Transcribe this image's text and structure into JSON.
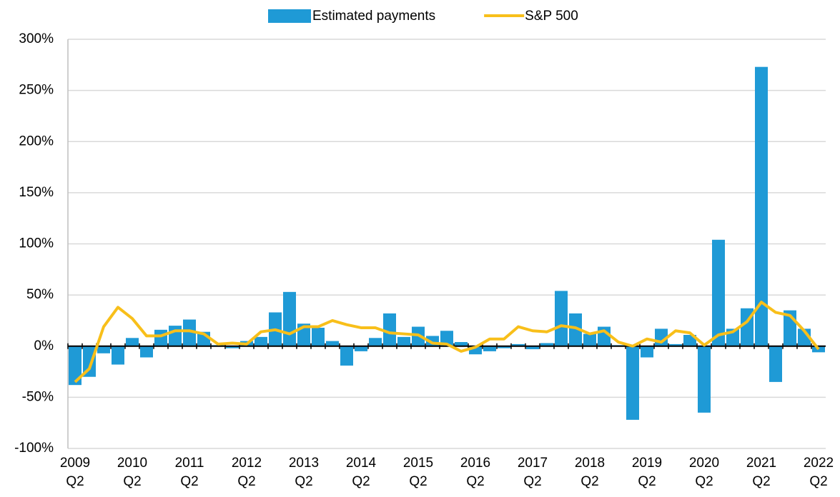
{
  "chart_data": {
    "type": "bar-line",
    "categories": [
      "2009\nQ2",
      null,
      null,
      null,
      "2010\nQ2",
      null,
      null,
      null,
      "2011\nQ2",
      null,
      null,
      null,
      "2012\nQ2",
      null,
      null,
      null,
      "2013\nQ2",
      null,
      null,
      null,
      "2014\nQ2",
      null,
      null,
      null,
      "2015\nQ2",
      null,
      null,
      null,
      "2016\nQ2",
      null,
      null,
      null,
      "2017\nQ2",
      null,
      null,
      null,
      "2018\nQ2",
      null,
      null,
      null,
      "2019\nQ2",
      null,
      null,
      null,
      "2020\nQ2",
      null,
      null,
      null,
      "2021\nQ2",
      null,
      null,
      null,
      "2022\nQ2"
    ],
    "series": [
      {
        "name": "Estimated payments",
        "type": "bar",
        "color": "#1f9ad6",
        "values": [
          -38,
          -30,
          -7,
          -18,
          8,
          -11,
          16,
          20,
          26,
          14,
          1,
          -2,
          5,
          9,
          33,
          53,
          22,
          18,
          5,
          -19,
          -5,
          8,
          32,
          9,
          19,
          10,
          15,
          4,
          -8,
          -5,
          -2,
          2,
          -3,
          3,
          54,
          32,
          12,
          19,
          1,
          -72,
          -11,
          17,
          2,
          11,
          -65,
          104,
          17,
          37,
          273,
          -35,
          35,
          17,
          -6
        ]
      },
      {
        "name": "S&P 500",
        "type": "line",
        "color": "#f8bf1a",
        "values": [
          -35,
          -22,
          19,
          38,
          27,
          10,
          10,
          15,
          15,
          12,
          2,
          3,
          2,
          14,
          16,
          12,
          19,
          19,
          25,
          21,
          18,
          18,
          13,
          12,
          11,
          3,
          2,
          -5,
          -1,
          7,
          7,
          19,
          15,
          14,
          20,
          18,
          12,
          15,
          4,
          0,
          7,
          4,
          15,
          13,
          1,
          11,
          14,
          24,
          43,
          33,
          30,
          15,
          -3
        ]
      }
    ],
    "ylim": [
      -100,
      300
    ],
    "yticks": [
      {
        "value": -100,
        "label": "-100%"
      },
      {
        "value": -50,
        "label": "-50%"
      },
      {
        "value": 0,
        "label": "0%"
      },
      {
        "value": 50,
        "label": "50%"
      },
      {
        "value": 100,
        "label": "100%"
      },
      {
        "value": 150,
        "label": "150%"
      },
      {
        "value": 200,
        "label": "200%"
      },
      {
        "value": 250,
        "label": "250%"
      },
      {
        "value": 300,
        "label": "300%"
      }
    ],
    "grid": true,
    "legend": "top"
  }
}
